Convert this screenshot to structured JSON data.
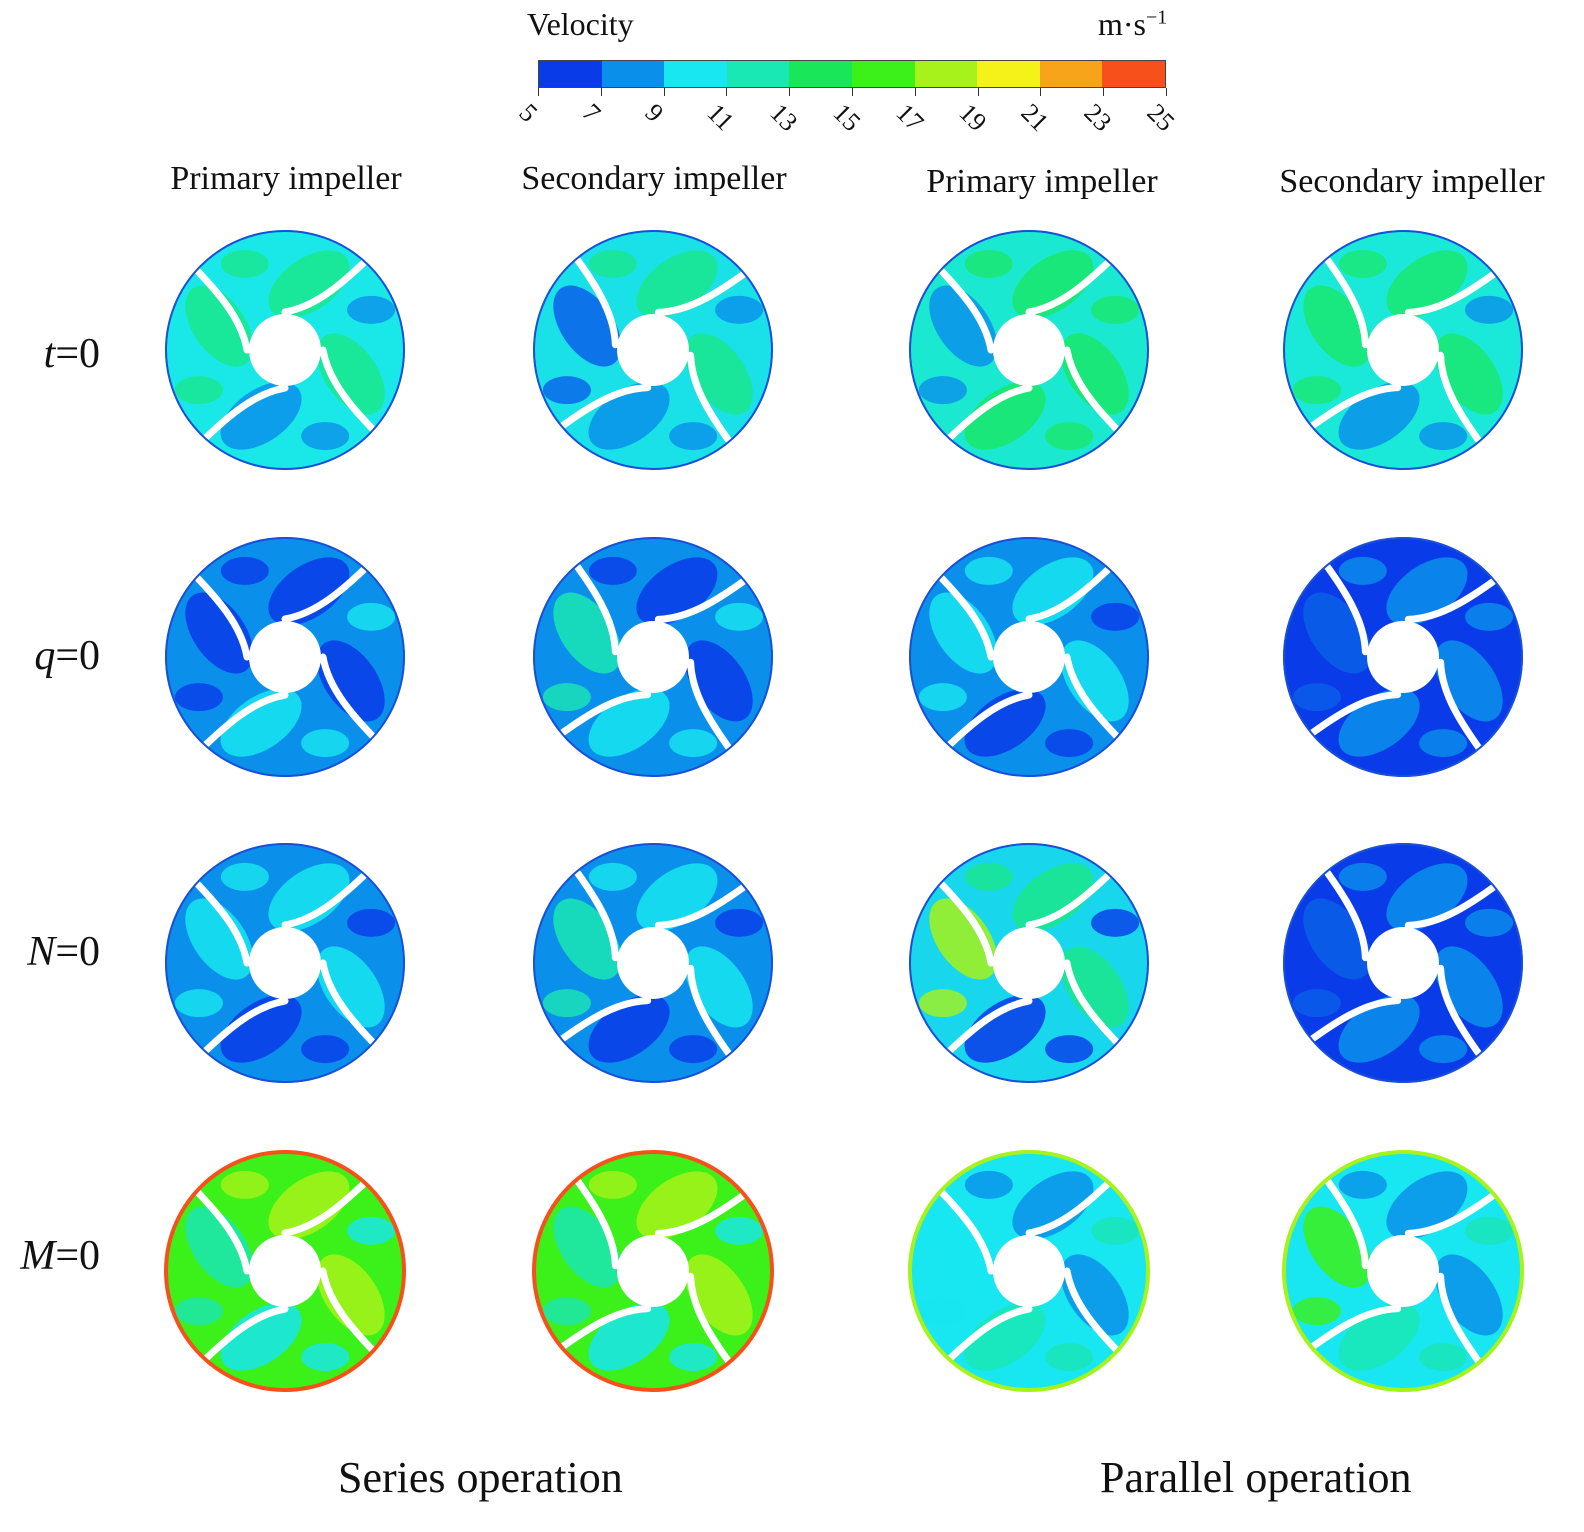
{
  "colorbar": {
    "title": "Velocity",
    "unit": "m·s",
    "unit_exp": "−1",
    "ticks": [
      "5",
      "7",
      "9",
      "11",
      "13",
      "15",
      "17",
      "19",
      "21",
      "23",
      "25"
    ],
    "colors": [
      "#0a3be8",
      "#0a90ea",
      "#18e6f0",
      "#1ae8b4",
      "#1ae65a",
      "#3cf01a",
      "#a6f21a",
      "#f5f21a",
      "#f8a41a",
      "#f8501a"
    ]
  },
  "columns": [
    {
      "label": "Primary impeller"
    },
    {
      "label": "Secondary impeller"
    },
    {
      "label": "Primary impeller"
    },
    {
      "label": "Secondary impeller"
    }
  ],
  "rows": [
    {
      "var": "t",
      "eq": "=0"
    },
    {
      "var": "q",
      "eq": "=0"
    },
    {
      "var": "N",
      "eq": "=0"
    },
    {
      "var": "M",
      "eq": "=0"
    }
  ],
  "panels": [
    [
      {
        "base": "#1ae8e8",
        "blobs": [
          "#1ae68c",
          "#0a90ea",
          "#1ae68c"
        ]
      },
      {
        "base": "#1ae0e8",
        "blobs": [
          "#1ae68c",
          "#0a90ea",
          "#0a60e8"
        ]
      },
      {
        "base": "#1ae8d0",
        "blobs": [
          "#1ae66a",
          "#1ae66a",
          "#0a90ea"
        ]
      },
      {
        "base": "#1ae8d8",
        "blobs": [
          "#1ae670",
          "#0a90ea",
          "#1ae670"
        ]
      }
    ],
    [
      {
        "base": "#0a90ea",
        "blobs": [
          "#0a3be8",
          "#18e6f0",
          "#0a3be8"
        ]
      },
      {
        "base": "#0a90ea",
        "blobs": [
          "#0a3be8",
          "#18e6f0",
          "#1ae6b4"
        ]
      },
      {
        "base": "#0a90ea",
        "blobs": [
          "#18e6f0",
          "#0a3be8",
          "#18e6f0"
        ]
      },
      {
        "base": "#0a3be8",
        "blobs": [
          "#0a90ea",
          "#0a90ea",
          "#0a60e8"
        ]
      }
    ],
    [
      {
        "base": "#0a90ea",
        "blobs": [
          "#18e6f0",
          "#0a3be8",
          "#18e6f0"
        ]
      },
      {
        "base": "#0a90ea",
        "blobs": [
          "#18e6f0",
          "#0a3be8",
          "#1ae6b4"
        ]
      },
      {
        "base": "#18d6ec",
        "blobs": [
          "#1ae68c",
          "#0a3be8",
          "#a6f21a"
        ]
      },
      {
        "base": "#0a3be8",
        "blobs": [
          "#0a90ea",
          "#0a90ea",
          "#0a60e8"
        ]
      }
    ],
    [
      {
        "base": "#3cf01a",
        "blobs": [
          "#a6f21a",
          "#18e6f0",
          "#1ae6b4"
        ],
        "rim": "#f8501a"
      },
      {
        "base": "#3cf01a",
        "blobs": [
          "#a6f21a",
          "#18e6f0",
          "#1ae6b4"
        ],
        "rim": "#f8501a"
      },
      {
        "base": "#18e6f0",
        "blobs": [
          "#0a90ea",
          "#1ae6b4",
          "#18e6f0"
        ],
        "rim": "#a6f21a"
      },
      {
        "base": "#18e6f0",
        "blobs": [
          "#0a90ea",
          "#1ae6b4",
          "#3cf01a"
        ],
        "rim": "#a6f21a"
      }
    ]
  ],
  "footers": [
    {
      "label": "Series operation"
    },
    {
      "label": "Parallel operation"
    }
  ]
}
